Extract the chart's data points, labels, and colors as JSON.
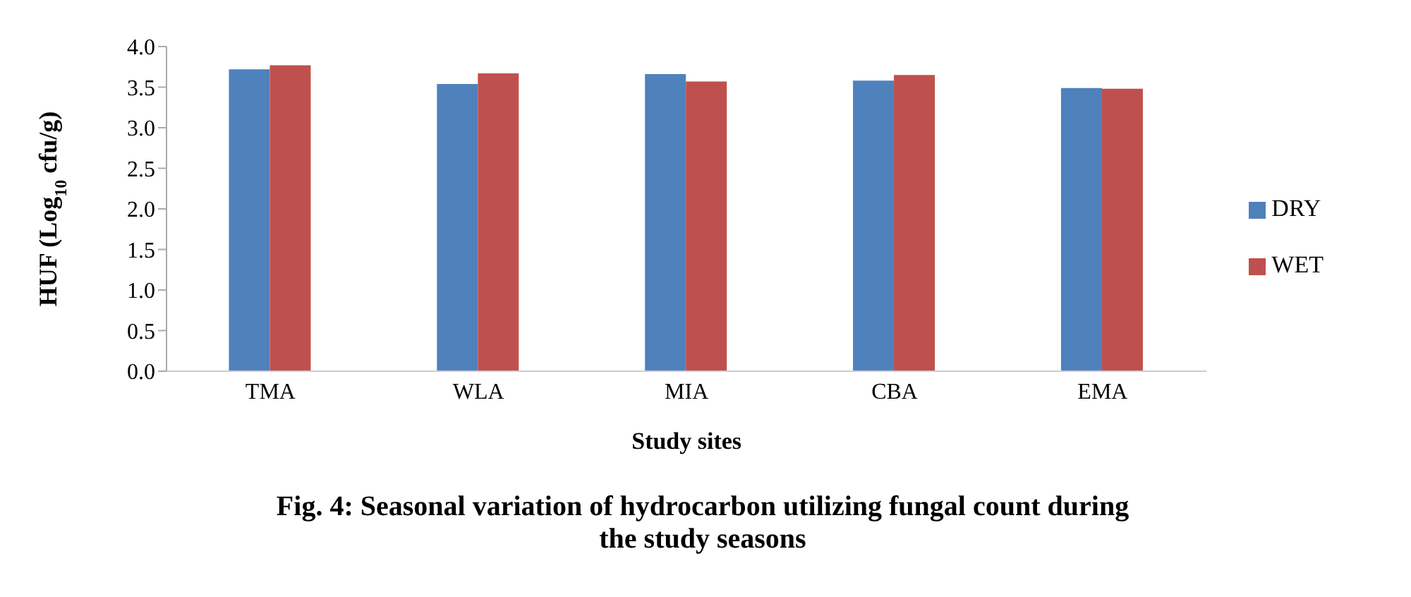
{
  "chart_data": {
    "type": "bar",
    "categories": [
      "TMA",
      "WLA",
      "MIA",
      "CBA",
      "EMA"
    ],
    "series": [
      {
        "name": "DRY",
        "color": "#4f81bd",
        "values": [
          3.72,
          3.54,
          3.66,
          3.58,
          3.49
        ]
      },
      {
        "name": "WET",
        "color": "#c0504d",
        "values": [
          3.77,
          3.67,
          3.57,
          3.65,
          3.48
        ]
      }
    ],
    "xlabel": "Study sites",
    "ylabel": "HUF (Log$_{10}$ cfu/g)",
    "ylim": [
      0,
      4
    ],
    "yticks": [
      {
        "value": 0,
        "label": "0.0"
      },
      {
        "value": 0.5,
        "label": "0.5"
      },
      {
        "value": 1,
        "label": "1.0"
      },
      {
        "value": 1.5,
        "label": "1.5"
      },
      {
        "value": 2,
        "label": "2.0"
      },
      {
        "value": 2.5,
        "label": "2.5"
      },
      {
        "value": 3,
        "label": "3.0"
      },
      {
        "value": 3.5,
        "label": "3.5"
      },
      {
        "value": 4,
        "label": "4.0"
      }
    ],
    "legend": "right",
    "grid": false,
    "annotations": [
      "Fig. 4: Seasonal variation of hydrocarbon utilizing fungal  count during the study seasons"
    ]
  }
}
